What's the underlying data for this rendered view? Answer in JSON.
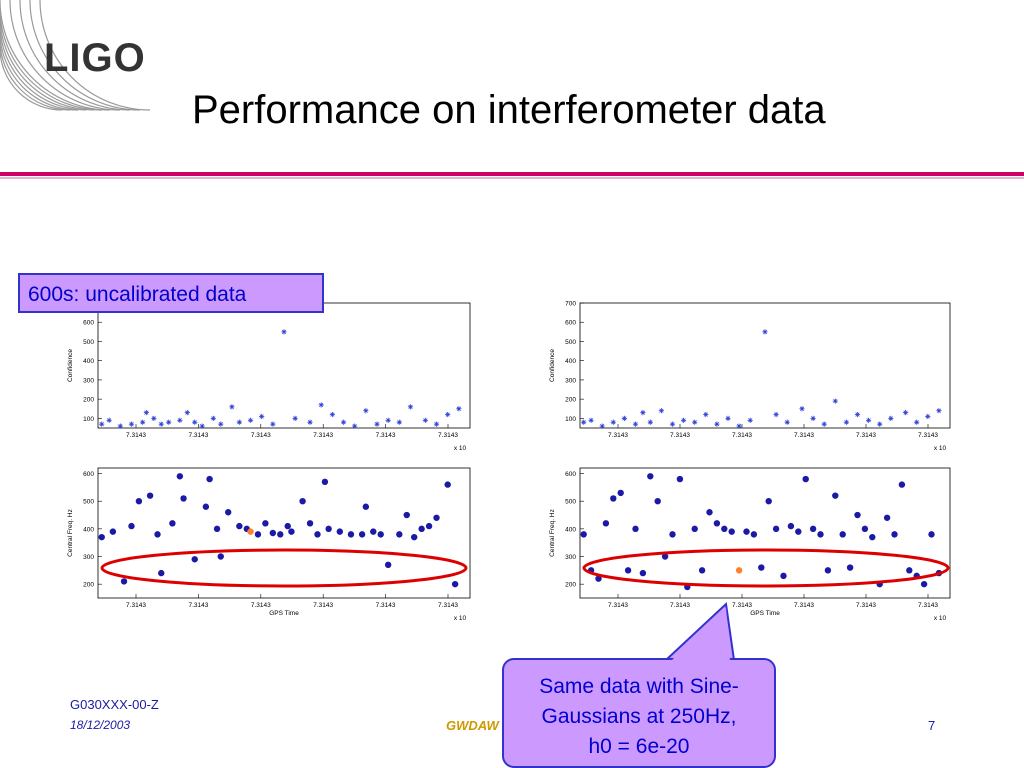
{
  "logo": {
    "text": "LIGO"
  },
  "slide": {
    "title": "Performance on interferometer data"
  },
  "callouts": {
    "left": "600s: uncalibrated data",
    "right_line1": "Same data with Sine-",
    "right_line2": "Gaussians at 250Hz,",
    "right_line3": "h0 = 6e-20"
  },
  "footer": {
    "doc_id": "G030XXX-00-Z",
    "date": "18/12/2003",
    "conference": "GWDAW",
    "page": "7"
  },
  "colors": {
    "accent_rule": "#cc0066",
    "callout_fill": "#cc99ff",
    "callout_text": "#0000cc",
    "ellipse": "#dd0000",
    "marker": "#1a1aa6"
  },
  "chart_data": [
    {
      "type": "scatter",
      "panel": "left-top",
      "ylabel": "Confidence",
      "xlabel": "",
      "xticklabels": [
        "7.3143",
        "7.3143",
        "7.3143",
        "7.3143",
        "7.3143",
        "7.3143"
      ],
      "xexponent": "x 10",
      "yticks": [
        100,
        200,
        300,
        400,
        500,
        600
      ],
      "ylim": [
        50,
        700
      ],
      "marker": "star",
      "x": [
        0.01,
        0.03,
        0.06,
        0.09,
        0.12,
        0.13,
        0.15,
        0.17,
        0.19,
        0.22,
        0.24,
        0.26,
        0.28,
        0.31,
        0.33,
        0.36,
        0.38,
        0.41,
        0.44,
        0.47,
        0.5,
        0.53,
        0.57,
        0.6,
        0.63,
        0.66,
        0.69,
        0.72,
        0.75,
        0.78,
        0.81,
        0.84,
        0.88,
        0.91,
        0.94,
        0.97
      ],
      "y": [
        70,
        90,
        60,
        70,
        80,
        130,
        100,
        70,
        80,
        90,
        130,
        80,
        60,
        100,
        70,
        160,
        80,
        90,
        110,
        70,
        550,
        100,
        80,
        170,
        120,
        80,
        60,
        140,
        70,
        90,
        80,
        160,
        90,
        70,
        120,
        150
      ]
    },
    {
      "type": "scatter",
      "panel": "right-top",
      "ylabel": "Confidence",
      "xlabel": "",
      "xticklabels": [
        "7.3143",
        "7.3143",
        "7.3143",
        "7.3143",
        "7.3143",
        "7.3143"
      ],
      "xexponent": "x 10",
      "yticks": [
        100,
        200,
        300,
        400,
        500,
        600,
        700
      ],
      "ylim": [
        50,
        700
      ],
      "marker": "star",
      "x": [
        0.01,
        0.03,
        0.06,
        0.09,
        0.12,
        0.15,
        0.17,
        0.19,
        0.22,
        0.25,
        0.28,
        0.31,
        0.34,
        0.37,
        0.4,
        0.43,
        0.46,
        0.5,
        0.53,
        0.56,
        0.6,
        0.63,
        0.66,
        0.69,
        0.72,
        0.75,
        0.78,
        0.81,
        0.84,
        0.88,
        0.91,
        0.94,
        0.97
      ],
      "y": [
        80,
        90,
        60,
        80,
        100,
        70,
        130,
        80,
        140,
        70,
        90,
        80,
        120,
        70,
        100,
        60,
        90,
        550,
        120,
        80,
        150,
        100,
        70,
        190,
        80,
        120,
        90,
        70,
        100,
        130,
        80,
        110,
        140
      ]
    },
    {
      "type": "scatter",
      "panel": "left-bottom",
      "ylabel": "Central Freq. Hz",
      "xlabel": "GPS Time",
      "xticklabels": [
        "7.3143",
        "7.3143",
        "7.3143",
        "7.3143",
        "7.3143",
        "7.3143"
      ],
      "xexponent": "x 10",
      "yticks": [
        200,
        300,
        400,
        500,
        600
      ],
      "ylim": [
        150,
        620
      ],
      "marker": "dot",
      "x": [
        0.01,
        0.04,
        0.07,
        0.09,
        0.11,
        0.14,
        0.16,
        0.17,
        0.2,
        0.22,
        0.23,
        0.26,
        0.29,
        0.3,
        0.32,
        0.33,
        0.35,
        0.38,
        0.4,
        0.41,
        0.43,
        0.45,
        0.47,
        0.49,
        0.51,
        0.52,
        0.55,
        0.57,
        0.59,
        0.61,
        0.62,
        0.65,
        0.68,
        0.71,
        0.72,
        0.74,
        0.76,
        0.78,
        0.81,
        0.83,
        0.85,
        0.87,
        0.89,
        0.91,
        0.94,
        0.96
      ],
      "y": [
        370,
        390,
        210,
        410,
        500,
        520,
        380,
        240,
        420,
        590,
        510,
        290,
        480,
        580,
        400,
        300,
        460,
        410,
        400,
        390,
        380,
        420,
        385,
        380,
        410,
        390,
        500,
        420,
        380,
        570,
        400,
        390,
        380,
        380,
        480,
        390,
        380,
        270,
        380,
        450,
        370,
        400,
        410,
        440,
        560,
        200
      ]
    },
    {
      "type": "scatter",
      "panel": "right-bottom",
      "ylabel": "Central Freq. Hz",
      "xlabel": "GPS Time",
      "xticklabels": [
        "7.3143",
        "7.3143",
        "7.3143",
        "7.3143",
        "7.3143",
        "7.3143"
      ],
      "xexponent": "x 10",
      "yticks": [
        200,
        300,
        400,
        500,
        600
      ],
      "ylim": [
        150,
        620
      ],
      "marker": "dot",
      "x": [
        0.01,
        0.03,
        0.05,
        0.07,
        0.09,
        0.11,
        0.13,
        0.15,
        0.17,
        0.19,
        0.21,
        0.23,
        0.25,
        0.27,
        0.29,
        0.31,
        0.33,
        0.35,
        0.37,
        0.39,
        0.41,
        0.43,
        0.45,
        0.47,
        0.49,
        0.51,
        0.53,
        0.55,
        0.57,
        0.59,
        0.61,
        0.63,
        0.65,
        0.67,
        0.69,
        0.71,
        0.73,
        0.75,
        0.77,
        0.79,
        0.81,
        0.83,
        0.85,
        0.87,
        0.89,
        0.91,
        0.93,
        0.95,
        0.97
      ],
      "y": [
        380,
        250,
        220,
        420,
        510,
        530,
        250,
        400,
        240,
        590,
        500,
        300,
        380,
        580,
        190,
        400,
        250,
        460,
        420,
        400,
        390,
        250,
        390,
        380,
        260,
        500,
        400,
        230,
        410,
        390,
        580,
        400,
        380,
        250,
        520,
        380,
        260,
        450,
        400,
        370,
        200,
        440,
        380,
        560,
        250,
        230,
        200,
        380,
        240
      ]
    }
  ]
}
